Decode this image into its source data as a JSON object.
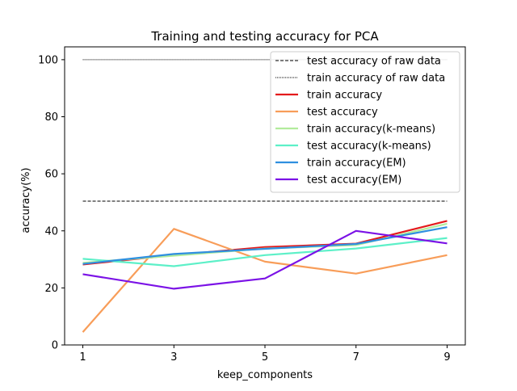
{
  "chart_data": {
    "type": "line",
    "title": "Training and testing accuracy for PCA",
    "xlabel": "keep_components",
    "ylabel": "accuracy(%)",
    "x": [
      1,
      3,
      5,
      7,
      9
    ],
    "xticks": [
      1,
      3,
      5,
      7,
      9
    ],
    "yticks": [
      0,
      20,
      40,
      60,
      80,
      100
    ],
    "xlim": [
      0.6,
      9.4
    ],
    "ylim": [
      0,
      104.5
    ],
    "grid": false,
    "legend_position": "top-right",
    "reference_lines": [
      {
        "name": "test accuracy of raw data",
        "value": 50.4,
        "color": "#000000",
        "style": "dashed"
      },
      {
        "name": "train accuracy of raw data",
        "value": 100,
        "color": "#000000",
        "style": "dotted"
      }
    ],
    "series": [
      {
        "name": "train accuracy",
        "color": "#e41a1c",
        "values": [
          28.2,
          31.5,
          34.3,
          35.5,
          43.5
        ]
      },
      {
        "name": "test accuracy",
        "color": "#f89d59",
        "values": [
          4.5,
          40.7,
          29.2,
          25.0,
          31.5
        ]
      },
      {
        "name": "train accuracy(k-means)",
        "color": "#b2ec9c",
        "values": [
          28.8,
          31.3,
          33.8,
          35.0,
          42.5
        ]
      },
      {
        "name": "test accuracy(k-means)",
        "color": "#5df0c8",
        "values": [
          30.2,
          27.6,
          31.5,
          33.8,
          37.5
        ]
      },
      {
        "name": "train accuracy(EM)",
        "color": "#2f8fe0",
        "values": [
          28.4,
          31.9,
          33.7,
          35.4,
          41.3
        ]
      },
      {
        "name": "test accuracy(EM)",
        "color": "#7b12e6",
        "values": [
          24.8,
          19.7,
          23.3,
          40.0,
          35.6
        ]
      }
    ]
  }
}
